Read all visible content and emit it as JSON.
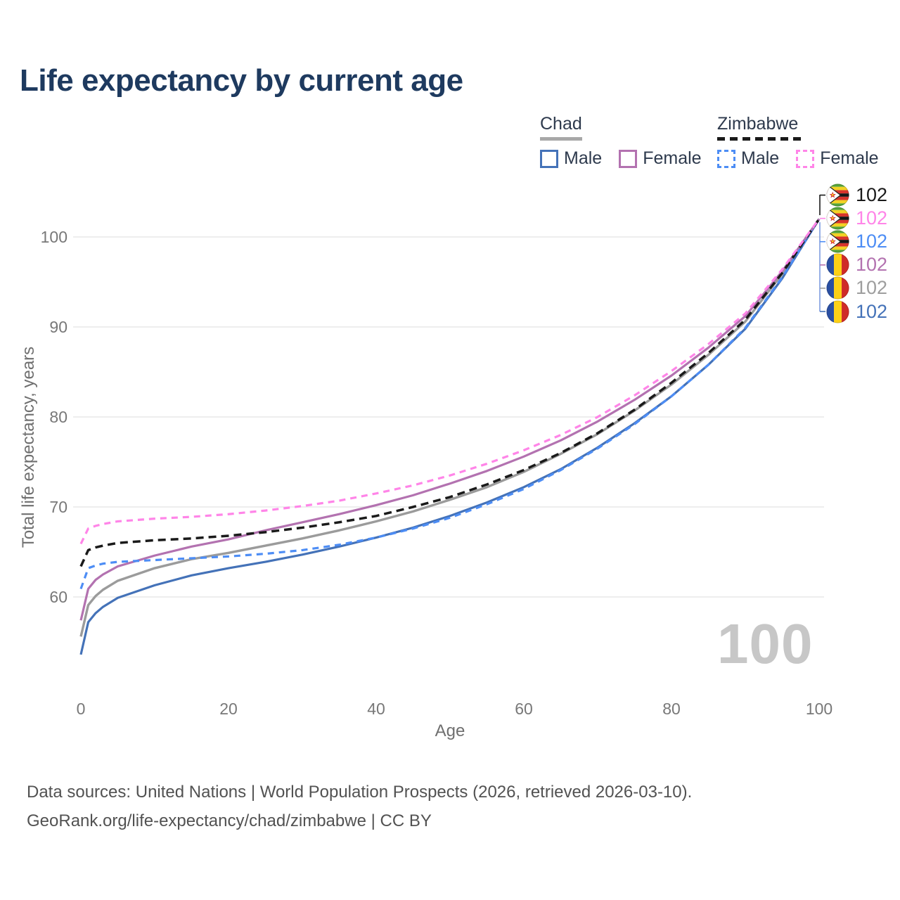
{
  "title": "Life expectancy by current age",
  "watermark": "100",
  "legend": {
    "groups": [
      {
        "label": "Chad",
        "line_style": "solid",
        "underline_color": "#a8a8a8",
        "items": [
          {
            "label": "Male",
            "color": "#4472b8",
            "dashed": false
          },
          {
            "label": "Female",
            "color": "#b372b0",
            "dashed": false
          }
        ]
      },
      {
        "label": "Zimbabwe",
        "line_style": "dashed",
        "underline_color": "#1a1a1a",
        "items": [
          {
            "label": "Male",
            "color": "#4d8df5",
            "dashed": true
          },
          {
            "label": "Female",
            "color": "#ff85e8",
            "dashed": true
          }
        ]
      }
    ]
  },
  "chart_data": {
    "type": "line",
    "title": "Life expectancy by current age",
    "xlabel": "Age",
    "ylabel": "Total life expectancy, years",
    "xlim": [
      0,
      100
    ],
    "ylim": [
      53,
      104
    ],
    "x_ticks": [
      0,
      20,
      40,
      60,
      80,
      100
    ],
    "y_ticks": [
      60,
      70,
      80,
      90,
      100
    ],
    "grid": "horizontal",
    "x": [
      0,
      1,
      2,
      3,
      5,
      10,
      15,
      20,
      25,
      30,
      35,
      40,
      45,
      50,
      55,
      60,
      65,
      70,
      75,
      80,
      85,
      90,
      95,
      100
    ],
    "series": [
      {
        "id": "chad-total",
        "name": "Chad",
        "country": "Chad",
        "group": "Total",
        "color": "#9b9b9b",
        "dashed": false,
        "width": 3.4,
        "values": [
          55.6,
          59.1,
          60.1,
          60.8,
          61.8,
          63.2,
          64.2,
          64.9,
          65.7,
          66.5,
          67.4,
          68.4,
          69.5,
          70.8,
          72.2,
          73.9,
          75.9,
          78.1,
          80.7,
          83.6,
          86.9,
          90.6,
          95.9,
          102
        ]
      },
      {
        "id": "chad-male",
        "name": "Chad Male",
        "country": "Chad",
        "group": "Male",
        "color": "#4472b8",
        "dashed": false,
        "width": 3.2,
        "values": [
          53.6,
          57.2,
          58.2,
          58.9,
          59.9,
          61.3,
          62.4,
          63.2,
          63.9,
          64.7,
          65.6,
          66.6,
          67.7,
          69.0,
          70.5,
          72.2,
          74.2,
          76.6,
          79.3,
          82.3,
          85.8,
          89.8,
          95.4,
          102
        ]
      },
      {
        "id": "chad-female",
        "name": "Chad Female",
        "country": "Chad",
        "group": "Female",
        "color": "#b372b0",
        "dashed": false,
        "width": 3.2,
        "values": [
          57.4,
          60.9,
          61.9,
          62.5,
          63.4,
          64.6,
          65.6,
          66.4,
          67.4,
          68.3,
          69.2,
          70.2,
          71.3,
          72.6,
          74.0,
          75.6,
          77.4,
          79.5,
          81.9,
          84.6,
          87.7,
          91.2,
          96.2,
          102
        ]
      },
      {
        "id": "zimbabwe-male",
        "name": "Zimbabwe Male",
        "country": "Zimbabwe",
        "group": "Male",
        "color": "#4d8df5",
        "dashed": true,
        "width": 3.2,
        "dash": "9 7",
        "values": [
          60.9,
          63.2,
          63.5,
          63.7,
          63.9,
          64.1,
          64.3,
          64.5,
          64.8,
          65.2,
          65.8,
          66.6,
          67.6,
          68.8,
          70.3,
          72.0,
          74.1,
          76.5,
          79.2,
          82.3,
          85.8,
          89.9,
          95.5,
          102
        ]
      },
      {
        "id": "zimbabwe-total",
        "name": "Zimbabwe",
        "country": "Zimbabwe",
        "group": "Total",
        "color": "#1a1a1a",
        "dashed": true,
        "width": 3.5,
        "dash": "11 7",
        "values": [
          63.4,
          65.2,
          65.5,
          65.7,
          66.0,
          66.3,
          66.5,
          66.8,
          67.2,
          67.7,
          68.3,
          69.0,
          70.0,
          71.1,
          72.5,
          74.1,
          76.0,
          78.2,
          80.8,
          83.8,
          87.1,
          90.8,
          96.0,
          102
        ]
      },
      {
        "id": "zimbabwe-female",
        "name": "Zimbabwe Female",
        "country": "Zimbabwe",
        "group": "Female",
        "color": "#ff85e8",
        "dashed": true,
        "width": 3.2,
        "dash": "9 7",
        "values": [
          65.9,
          67.6,
          67.9,
          68.1,
          68.4,
          68.7,
          68.9,
          69.2,
          69.6,
          70.1,
          70.7,
          71.5,
          72.4,
          73.5,
          74.8,
          76.3,
          78.0,
          80.0,
          82.4,
          85.1,
          88.1,
          91.5,
          96.4,
          102
        ]
      }
    ],
    "end_labels": [
      {
        "id": "zimbabwe-total",
        "value": "102",
        "color": "#1a1a1a",
        "flag": "zimbabwe"
      },
      {
        "id": "zimbabwe-female",
        "value": "102",
        "color": "#ff85e8",
        "flag": "zimbabwe"
      },
      {
        "id": "zimbabwe-male",
        "value": "102",
        "color": "#4d8df5",
        "flag": "zimbabwe"
      },
      {
        "id": "chad-female",
        "value": "102",
        "color": "#b372b0",
        "flag": "chad"
      },
      {
        "id": "chad-total",
        "value": "102",
        "color": "#9e9e9e",
        "flag": "chad"
      },
      {
        "id": "chad-male",
        "value": "102",
        "color": "#4472b8",
        "flag": "chad"
      }
    ],
    "flag_colors": {
      "zimbabwe": {
        "green": "#55a33a",
        "yellow": "#f3d224",
        "red": "#d8342c",
        "black": "#161616",
        "white": "#ffffff",
        "star": "#d8342c"
      },
      "chad": {
        "blue": "#2a4fa2",
        "yellow": "#fdd116",
        "red": "#cf2b28"
      }
    }
  },
  "footer": {
    "line1": "Data sources: United Nations | World Population Prospects (2026, retrieved 2026-03-10).",
    "line2": "GeoRank.org/life-expectancy/chad/zimbabwe | CC BY"
  }
}
